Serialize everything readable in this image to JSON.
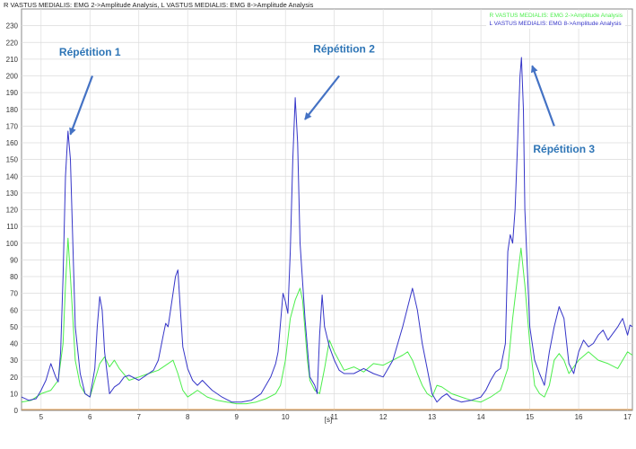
{
  "chart_title": "R VASTUS MEDIALIS: EMG 2->Amplitude Analysis, L VASTUS MEDIALIS: EMG 8->Amplitude Analysis",
  "chart_data": {
    "type": "line",
    "xlabel": "[s]",
    "ylabel": "",
    "xlim": [
      4.6,
      17.1
    ],
    "ylim": [
      0,
      240
    ],
    "x_ticks": [
      5,
      6,
      7,
      8,
      9,
      10,
      11,
      12,
      13,
      14,
      15,
      16,
      17
    ],
    "y_ticks": [
      0,
      10,
      20,
      30,
      40,
      50,
      60,
      70,
      80,
      90,
      100,
      110,
      120,
      130,
      140,
      150,
      160,
      170,
      180,
      190,
      200,
      210,
      220,
      230
    ],
    "grid": true,
    "legend_position": "top-right",
    "series": [
      {
        "name": "R VASTUS MEDIALIS: EMG 2->Amplitude Analysis",
        "color": "#4cee4c",
        "points": [
          [
            4.6,
            5
          ],
          [
            4.8,
            6
          ],
          [
            5.0,
            10
          ],
          [
            5.2,
            12
          ],
          [
            5.35,
            18
          ],
          [
            5.45,
            40
          ],
          [
            5.5,
            75
          ],
          [
            5.55,
            103
          ],
          [
            5.6,
            80
          ],
          [
            5.7,
            30
          ],
          [
            5.8,
            15
          ],
          [
            5.9,
            10
          ],
          [
            6.0,
            8
          ],
          [
            6.1,
            18
          ],
          [
            6.2,
            28
          ],
          [
            6.3,
            32
          ],
          [
            6.4,
            26
          ],
          [
            6.5,
            30
          ],
          [
            6.6,
            25
          ],
          [
            6.8,
            18
          ],
          [
            7.0,
            20
          ],
          [
            7.2,
            22
          ],
          [
            7.4,
            24
          ],
          [
            7.6,
            28
          ],
          [
            7.7,
            30
          ],
          [
            7.8,
            22
          ],
          [
            7.9,
            12
          ],
          [
            8.0,
            8
          ],
          [
            8.1,
            10
          ],
          [
            8.2,
            12
          ],
          [
            8.4,
            8
          ],
          [
            8.6,
            6
          ],
          [
            8.8,
            5
          ],
          [
            9.0,
            4
          ],
          [
            9.2,
            4
          ],
          [
            9.4,
            5
          ],
          [
            9.6,
            7
          ],
          [
            9.8,
            10
          ],
          [
            9.9,
            15
          ],
          [
            10.0,
            30
          ],
          [
            10.1,
            55
          ],
          [
            10.2,
            66
          ],
          [
            10.3,
            73
          ],
          [
            10.35,
            66
          ],
          [
            10.45,
            30
          ],
          [
            10.5,
            18
          ],
          [
            10.6,
            12
          ],
          [
            10.7,
            10
          ],
          [
            10.8,
            25
          ],
          [
            10.9,
            42
          ],
          [
            11.0,
            35
          ],
          [
            11.2,
            24
          ],
          [
            11.4,
            26
          ],
          [
            11.6,
            23
          ],
          [
            11.8,
            28
          ],
          [
            12.0,
            27
          ],
          [
            12.2,
            30
          ],
          [
            12.4,
            33
          ],
          [
            12.5,
            35
          ],
          [
            12.6,
            30
          ],
          [
            12.7,
            22
          ],
          [
            12.8,
            15
          ],
          [
            12.9,
            10
          ],
          [
            13.0,
            8
          ],
          [
            13.1,
            15
          ],
          [
            13.2,
            14
          ],
          [
            13.4,
            10
          ],
          [
            13.6,
            8
          ],
          [
            13.8,
            6
          ],
          [
            14.0,
            5
          ],
          [
            14.2,
            8
          ],
          [
            14.4,
            12
          ],
          [
            14.55,
            25
          ],
          [
            14.65,
            55
          ],
          [
            14.75,
            80
          ],
          [
            14.82,
            97
          ],
          [
            14.9,
            75
          ],
          [
            15.0,
            40
          ],
          [
            15.1,
            15
          ],
          [
            15.2,
            10
          ],
          [
            15.3,
            8
          ],
          [
            15.4,
            15
          ],
          [
            15.5,
            30
          ],
          [
            15.6,
            34
          ],
          [
            15.7,
            30
          ],
          [
            15.8,
            22
          ],
          [
            16.0,
            30
          ],
          [
            16.2,
            35
          ],
          [
            16.4,
            30
          ],
          [
            16.6,
            28
          ],
          [
            16.8,
            25
          ],
          [
            17.0,
            35
          ],
          [
            17.1,
            33
          ]
        ]
      },
      {
        "name": "L VASTUS MEDIALIS: EMG 8->Amplitude Analysis",
        "color": "#3535c8",
        "points": [
          [
            4.6,
            8
          ],
          [
            4.75,
            6
          ],
          [
            4.9,
            7
          ],
          [
            5.0,
            12
          ],
          [
            5.1,
            18
          ],
          [
            5.2,
            28
          ],
          [
            5.3,
            20
          ],
          [
            5.35,
            17
          ],
          [
            5.4,
            35
          ],
          [
            5.45,
            80
          ],
          [
            5.5,
            140
          ],
          [
            5.55,
            167
          ],
          [
            5.6,
            150
          ],
          [
            5.65,
            100
          ],
          [
            5.7,
            50
          ],
          [
            5.8,
            22
          ],
          [
            5.9,
            10
          ],
          [
            6.0,
            8
          ],
          [
            6.1,
            25
          ],
          [
            6.15,
            50
          ],
          [
            6.2,
            68
          ],
          [
            6.25,
            60
          ],
          [
            6.3,
            35
          ],
          [
            6.4,
            10
          ],
          [
            6.5,
            14
          ],
          [
            6.6,
            16
          ],
          [
            6.7,
            20
          ],
          [
            6.8,
            21
          ],
          [
            7.0,
            18
          ],
          [
            7.2,
            22
          ],
          [
            7.3,
            24
          ],
          [
            7.4,
            30
          ],
          [
            7.5,
            45
          ],
          [
            7.55,
            52
          ],
          [
            7.6,
            50
          ],
          [
            7.7,
            70
          ],
          [
            7.75,
            80
          ],
          [
            7.8,
            84
          ],
          [
            7.85,
            60
          ],
          [
            7.9,
            38
          ],
          [
            8.0,
            25
          ],
          [
            8.1,
            18
          ],
          [
            8.2,
            15
          ],
          [
            8.3,
            18
          ],
          [
            8.4,
            15
          ],
          [
            8.5,
            12
          ],
          [
            8.7,
            8
          ],
          [
            8.9,
            5
          ],
          [
            9.1,
            5
          ],
          [
            9.3,
            6
          ],
          [
            9.5,
            10
          ],
          [
            9.7,
            20
          ],
          [
            9.8,
            28
          ],
          [
            9.85,
            35
          ],
          [
            9.95,
            70
          ],
          [
            10.0,
            65
          ],
          [
            10.05,
            58
          ],
          [
            10.1,
            95
          ],
          [
            10.15,
            150
          ],
          [
            10.2,
            187
          ],
          [
            10.25,
            160
          ],
          [
            10.3,
            100
          ],
          [
            10.4,
            55
          ],
          [
            10.5,
            20
          ],
          [
            10.6,
            15
          ],
          [
            10.65,
            10
          ],
          [
            10.7,
            45
          ],
          [
            10.75,
            69
          ],
          [
            10.8,
            50
          ],
          [
            10.9,
            38
          ],
          [
            11.0,
            30
          ],
          [
            11.1,
            24
          ],
          [
            11.2,
            22
          ],
          [
            11.4,
            22
          ],
          [
            11.6,
            25
          ],
          [
            11.8,
            22
          ],
          [
            12.0,
            20
          ],
          [
            12.2,
            30
          ],
          [
            12.4,
            50
          ],
          [
            12.6,
            73
          ],
          [
            12.7,
            60
          ],
          [
            12.8,
            40
          ],
          [
            12.9,
            25
          ],
          [
            13.0,
            10
          ],
          [
            13.1,
            5
          ],
          [
            13.2,
            8
          ],
          [
            13.3,
            10
          ],
          [
            13.4,
            7
          ],
          [
            13.6,
            5
          ],
          [
            13.8,
            6
          ],
          [
            14.0,
            8
          ],
          [
            14.1,
            12
          ],
          [
            14.2,
            18
          ],
          [
            14.3,
            23
          ],
          [
            14.4,
            25
          ],
          [
            14.5,
            40
          ],
          [
            14.55,
            95
          ],
          [
            14.6,
            105
          ],
          [
            14.65,
            100
          ],
          [
            14.7,
            120
          ],
          [
            14.75,
            160
          ],
          [
            14.8,
            200
          ],
          [
            14.83,
            211
          ],
          [
            14.87,
            180
          ],
          [
            14.9,
            120
          ],
          [
            15.0,
            50
          ],
          [
            15.1,
            30
          ],
          [
            15.2,
            22
          ],
          [
            15.3,
            15
          ],
          [
            15.4,
            35
          ],
          [
            15.5,
            50
          ],
          [
            15.6,
            62
          ],
          [
            15.7,
            55
          ],
          [
            15.8,
            28
          ],
          [
            15.9,
            22
          ],
          [
            16.0,
            35
          ],
          [
            16.1,
            42
          ],
          [
            16.2,
            38
          ],
          [
            16.3,
            40
          ],
          [
            16.4,
            45
          ],
          [
            16.5,
            48
          ],
          [
            16.6,
            42
          ],
          [
            16.8,
            50
          ],
          [
            16.9,
            55
          ],
          [
            17.0,
            45
          ],
          [
            17.05,
            51
          ],
          [
            17.1,
            50
          ]
        ]
      }
    ],
    "annotations": [
      {
        "text": "Répétition 1",
        "label_x": 6.0,
        "label_y": 212,
        "arrow_from": [
          6.05,
          200
        ],
        "arrow_to": [
          5.6,
          165
        ]
      },
      {
        "text": "Répétition 2",
        "label_x": 11.2,
        "label_y": 214,
        "arrow_from": [
          11.1,
          200
        ],
        "arrow_to": [
          10.4,
          174
        ]
      },
      {
        "text": "Répétition 3",
        "label_x": 15.7,
        "label_y": 154,
        "arrow_from": [
          15.5,
          170
        ],
        "arrow_to": [
          15.05,
          206
        ]
      }
    ]
  }
}
